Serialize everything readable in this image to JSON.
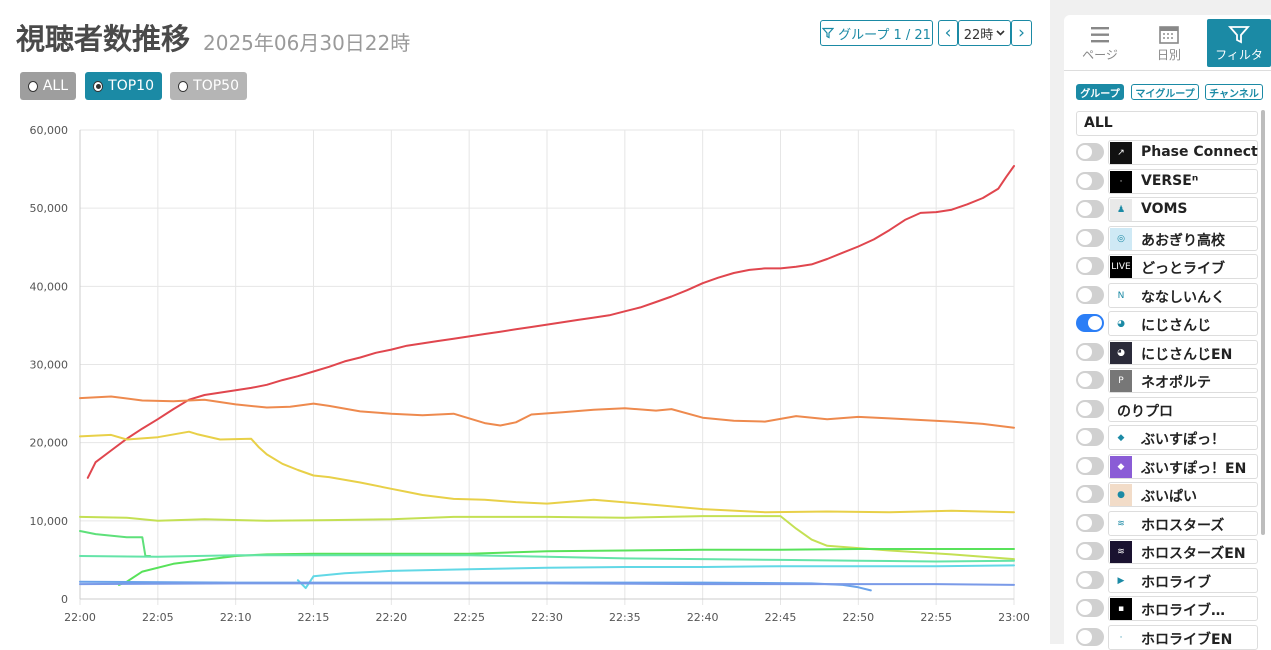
{
  "header": {
    "title": "視聴者数推移",
    "subtitle": "2025年06月30日22時",
    "group_button": "グループ 1 / 21",
    "prev": "‹",
    "hour": "22時",
    "next": "›"
  },
  "range_buttons": [
    {
      "label": "ALL",
      "selected": false
    },
    {
      "label": "TOP10",
      "selected": true
    },
    {
      "label": "TOP50",
      "selected": false
    }
  ],
  "sidebar": {
    "tabs": [
      {
        "label": "ページ",
        "icon": "menu-icon"
      },
      {
        "label": "日別",
        "icon": "calendar-icon"
      },
      {
        "label": "フィルタ",
        "icon": "filter-icon",
        "active": true
      }
    ],
    "chips": [
      "グループ",
      "マイグループ",
      "チャンネル"
    ],
    "all_label": "ALL",
    "items": [
      {
        "label": "Phase Connect",
        "on": false,
        "logo_bg": "#111111",
        "logo_text": "↗"
      },
      {
        "label": "VERSEⁿ",
        "on": false,
        "logo_bg": "#000000",
        "logo_text": "·"
      },
      {
        "label": "VOMS",
        "on": false,
        "logo_bg": "#e9e9e9",
        "logo_text": "♟"
      },
      {
        "label": "あおぎり高校",
        "on": false,
        "logo_bg": "#cfe9f5",
        "logo_text": "◎"
      },
      {
        "label": "どっとライブ",
        "on": false,
        "logo_bg": "#000000",
        "logo_text": "LIVE"
      },
      {
        "label": "ななしいんく",
        "on": false,
        "logo_bg": "#ffffff",
        "logo_text": "N"
      },
      {
        "label": "にじさんじ",
        "on": true,
        "logo_bg": "#ffffff",
        "logo_text": "◕"
      },
      {
        "label": "にじさんじEN",
        "on": false,
        "logo_bg": "#2b2b3a",
        "logo_text": "◕"
      },
      {
        "label": "ネオポルテ",
        "on": false,
        "logo_bg": "#777777",
        "logo_text": "P"
      },
      {
        "label": "のりプロ",
        "on": false,
        "logo_bg": "",
        "logo_text": ""
      },
      {
        "label": "ぶいすぽっ！",
        "on": false,
        "logo_bg": "#ffffff",
        "logo_text": "◆"
      },
      {
        "label": "ぶいすぽっ！EN",
        "on": false,
        "logo_bg": "#8a5cd6",
        "logo_text": "◆"
      },
      {
        "label": "ぶいぱい",
        "on": false,
        "logo_bg": "#f2dcc8",
        "logo_text": "●"
      },
      {
        "label": "ホロスターズ",
        "on": false,
        "logo_bg": "#ffffff",
        "logo_text": "≋"
      },
      {
        "label": "ホロスターズEN",
        "on": false,
        "logo_bg": "#1a1230",
        "logo_text": "≋"
      },
      {
        "label": "ホロライブ",
        "on": false,
        "logo_bg": "#ffffff",
        "logo_text": "▶"
      },
      {
        "label": "ホロライブ…",
        "on": false,
        "logo_bg": "#000000",
        "logo_text": "▪"
      },
      {
        "label": "ホロライブEN",
        "on": false,
        "logo_bg": "#ffffff",
        "logo_text": "·"
      }
    ]
  },
  "chart_data": {
    "type": "line",
    "x_ticks": [
      "22:00",
      "22:05",
      "22:10",
      "22:15",
      "22:20",
      "22:25",
      "22:30",
      "22:35",
      "22:40",
      "22:45",
      "22:50",
      "22:55",
      "23:00"
    ],
    "y_ticks": [
      "0",
      "10,000",
      "20,000",
      "30,000",
      "40,000",
      "50,000",
      "60,000"
    ],
    "ylim": [
      0,
      60000
    ],
    "xlim_minutes": [
      0,
      60
    ],
    "grid": true,
    "series": [
      {
        "color": "#e0464e",
        "points": [
          [
            0.5,
            15500
          ],
          [
            1,
            17500
          ],
          [
            2,
            19000
          ],
          [
            3,
            20500
          ],
          [
            4,
            21800
          ],
          [
            5,
            23000
          ],
          [
            6,
            24300
          ],
          [
            7,
            25500
          ],
          [
            8,
            26100
          ],
          [
            9,
            26400
          ],
          [
            10,
            26700
          ],
          [
            11,
            27000
          ],
          [
            12,
            27400
          ],
          [
            13,
            28000
          ],
          [
            14,
            28500
          ],
          [
            15,
            29100
          ],
          [
            16,
            29700
          ],
          [
            17,
            30400
          ],
          [
            18,
            30900
          ],
          [
            19,
            31500
          ],
          [
            20,
            31900
          ],
          [
            21,
            32400
          ],
          [
            22,
            32700
          ],
          [
            23,
            33000
          ],
          [
            24,
            33300
          ],
          [
            25,
            33600
          ],
          [
            26,
            33900
          ],
          [
            27,
            34200
          ],
          [
            28,
            34500
          ],
          [
            29,
            34800
          ],
          [
            30,
            35100
          ],
          [
            31,
            35400
          ],
          [
            32,
            35700
          ],
          [
            33,
            36000
          ],
          [
            34,
            36300
          ],
          [
            35,
            36800
          ],
          [
            36,
            37300
          ],
          [
            37,
            38000
          ],
          [
            38,
            38700
          ],
          [
            39,
            39500
          ],
          [
            40,
            40400
          ],
          [
            41,
            41100
          ],
          [
            42,
            41700
          ],
          [
            43,
            42100
          ],
          [
            44,
            42300
          ],
          [
            45,
            42300
          ],
          [
            46,
            42500
          ],
          [
            47,
            42800
          ],
          [
            48,
            43500
          ],
          [
            49,
            44300
          ],
          [
            50,
            45100
          ],
          [
            51,
            46000
          ],
          [
            52,
            47200
          ],
          [
            53,
            48500
          ],
          [
            54,
            49400
          ],
          [
            55,
            49500
          ],
          [
            56,
            49800
          ],
          [
            57,
            50500
          ],
          [
            58,
            51300
          ],
          [
            59,
            52500
          ],
          [
            59.5,
            54000
          ],
          [
            60,
            55400
          ]
        ]
      },
      {
        "color": "#ee8a4e",
        "points": [
          [
            0,
            25700
          ],
          [
            2,
            25900
          ],
          [
            4,
            25400
          ],
          [
            6,
            25300
          ],
          [
            8,
            25500
          ],
          [
            10,
            24900
          ],
          [
            12,
            24500
          ],
          [
            13.5,
            24600
          ],
          [
            15,
            25000
          ],
          [
            16,
            24700
          ],
          [
            18,
            24000
          ],
          [
            20,
            23700
          ],
          [
            22,
            23500
          ],
          [
            24,
            23700
          ],
          [
            26,
            22500
          ],
          [
            27,
            22200
          ],
          [
            28,
            22600
          ],
          [
            29,
            23600
          ],
          [
            31,
            23900
          ],
          [
            33,
            24200
          ],
          [
            35,
            24400
          ],
          [
            37,
            24100
          ],
          [
            38,
            24300
          ],
          [
            40,
            23200
          ],
          [
            42,
            22800
          ],
          [
            44,
            22700
          ],
          [
            46,
            23400
          ],
          [
            48,
            23000
          ],
          [
            50,
            23300
          ],
          [
            52,
            23100
          ],
          [
            54,
            22900
          ],
          [
            56,
            22700
          ],
          [
            58,
            22400
          ],
          [
            60,
            21900
          ]
        ]
      },
      {
        "color": "#e8d048",
        "points": [
          [
            0,
            20800
          ],
          [
            2,
            21000
          ],
          [
            3,
            20400
          ],
          [
            5,
            20700
          ],
          [
            7,
            21400
          ],
          [
            7.5,
            21100
          ],
          [
            9,
            20400
          ],
          [
            11,
            20500
          ],
          [
            11.5,
            19400
          ],
          [
            12,
            18500
          ],
          [
            13,
            17300
          ],
          [
            14,
            16500
          ],
          [
            15,
            15800
          ],
          [
            16,
            15600
          ],
          [
            18,
            14900
          ],
          [
            20,
            14100
          ],
          [
            21,
            13700
          ],
          [
            22,
            13300
          ],
          [
            24,
            12800
          ],
          [
            26,
            12700
          ],
          [
            28,
            12400
          ],
          [
            30,
            12200
          ],
          [
            33,
            12700
          ],
          [
            36,
            12200
          ],
          [
            40,
            11500
          ],
          [
            44,
            11100
          ],
          [
            48,
            11200
          ],
          [
            52,
            11100
          ],
          [
            56,
            11300
          ],
          [
            60,
            11100
          ]
        ]
      },
      {
        "color": "#c4e054",
        "points": [
          [
            0,
            10500
          ],
          [
            3,
            10400
          ],
          [
            5,
            10000
          ],
          [
            8,
            10200
          ],
          [
            12,
            10000
          ],
          [
            16,
            10100
          ],
          [
            20,
            10200
          ],
          [
            24,
            10500
          ],
          [
            30,
            10500
          ],
          [
            35,
            10400
          ],
          [
            40,
            10600
          ],
          [
            43,
            10600
          ],
          [
            45,
            10600
          ],
          [
            46,
            9000
          ],
          [
            47,
            7600
          ],
          [
            48,
            6800
          ],
          [
            52,
            6200
          ],
          [
            56,
            5700
          ],
          [
            60,
            5100
          ]
        ]
      },
      {
        "color": "#5ee07a",
        "points": [
          [
            0,
            8700
          ],
          [
            1,
            8300
          ],
          [
            3,
            7900
          ],
          [
            4,
            7900
          ],
          [
            4.2,
            5500
          ],
          [
            4.5,
            5500
          ]
        ]
      },
      {
        "color": "#58e25a",
        "points": [
          [
            2.5,
            1800
          ],
          [
            3,
            2200
          ],
          [
            4,
            3500
          ],
          [
            6,
            4500
          ],
          [
            8,
            5000
          ],
          [
            10,
            5500
          ],
          [
            12,
            5700
          ],
          [
            15,
            5800
          ],
          [
            20,
            5800
          ],
          [
            25,
            5800
          ],
          [
            30,
            6100
          ],
          [
            35,
            6200
          ],
          [
            40,
            6300
          ],
          [
            45,
            6300
          ],
          [
            50,
            6400
          ],
          [
            55,
            6400
          ],
          [
            60,
            6400
          ]
        ]
      },
      {
        "color": "#64e4a8",
        "points": [
          [
            0,
            5500
          ],
          [
            5,
            5400
          ],
          [
            10,
            5600
          ],
          [
            15,
            5600
          ],
          [
            20,
            5600
          ],
          [
            25,
            5600
          ],
          [
            30,
            5400
          ],
          [
            35,
            5200
          ],
          [
            40,
            5100
          ],
          [
            45,
            5000
          ],
          [
            50,
            4900
          ],
          [
            55,
            4800
          ],
          [
            60,
            4900
          ]
        ]
      },
      {
        "color": "#62d8e6",
        "points": [
          [
            14,
            2400
          ],
          [
            14.5,
            1400
          ],
          [
            15,
            2900
          ],
          [
            17,
            3300
          ],
          [
            20,
            3600
          ],
          [
            25,
            3800
          ],
          [
            30,
            4000
          ],
          [
            35,
            4100
          ],
          [
            40,
            4100
          ],
          [
            45,
            4200
          ],
          [
            50,
            4200
          ],
          [
            55,
            4200
          ],
          [
            60,
            4300
          ]
        ]
      },
      {
        "color": "#6aa2ea",
        "points": [
          [
            0,
            2200
          ],
          [
            10,
            2100
          ],
          [
            20,
            2100
          ],
          [
            30,
            2100
          ],
          [
            40,
            2100
          ],
          [
            47,
            2000
          ],
          [
            49,
            1800
          ],
          [
            50,
            1500
          ],
          [
            50.8,
            1100
          ]
        ]
      },
      {
        "color": "#7a9ae8",
        "points": [
          [
            0,
            1900
          ],
          [
            10,
            2000
          ],
          [
            20,
            2000
          ],
          [
            30,
            2000
          ],
          [
            40,
            1900
          ],
          [
            48,
            1900
          ],
          [
            50,
            1900
          ],
          [
            55,
            1900
          ],
          [
            60,
            1800
          ]
        ]
      }
    ]
  }
}
